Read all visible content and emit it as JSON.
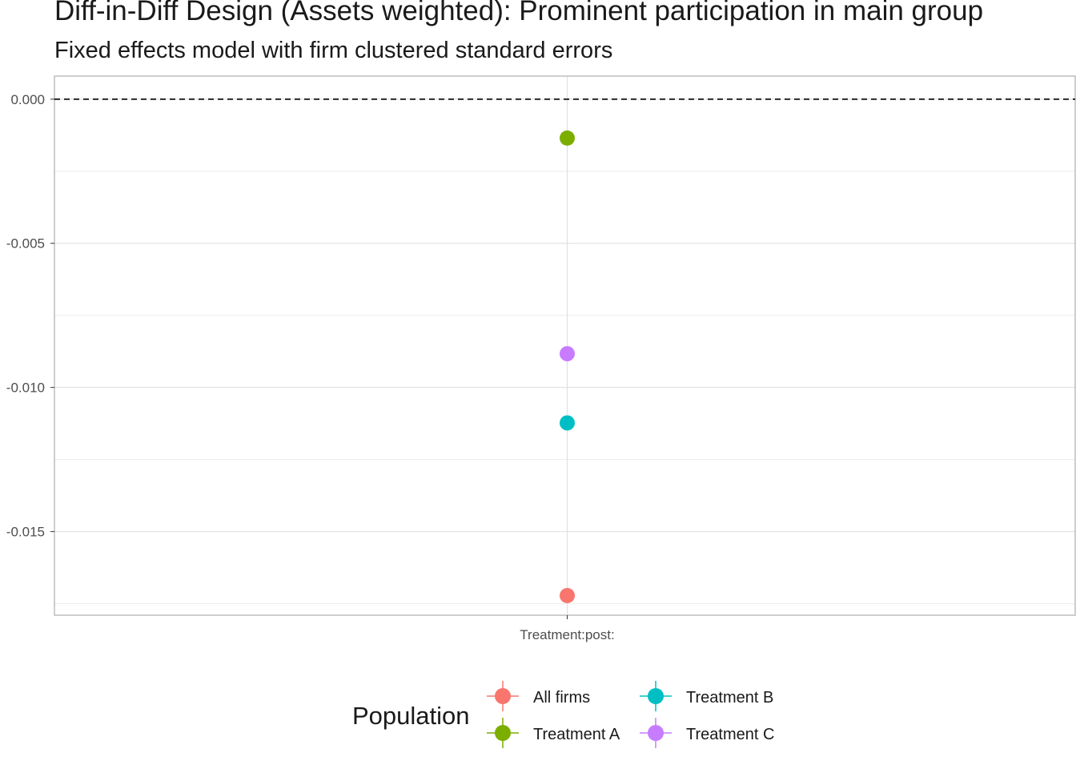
{
  "chart_data": {
    "type": "scatter",
    "title": "Diff-in-Diff Design (Assets weighted): Prominent participation in main group",
    "subtitle": "Fixed effects model with firm clustered standard errors",
    "xlabel": "",
    "ylabel": "",
    "categories": [
      "Treatment:post:"
    ],
    "ylim": [
      -0.0179,
      0.0008
    ],
    "yticks": [
      0.0,
      -0.005,
      -0.01,
      -0.015
    ],
    "ytick_labels": [
      "0.000",
      "-0.005",
      "-0.010",
      "-0.015"
    ],
    "reference_line": 0.0,
    "grid": true,
    "legend": {
      "title": "Population",
      "placement": "bottom"
    },
    "series": [
      {
        "name": "All firms",
        "color": "#F8766D",
        "values": [
          -0.01722
        ]
      },
      {
        "name": "Treatment A",
        "color": "#7CAE00",
        "values": [
          -0.00135
        ]
      },
      {
        "name": "Treatment B",
        "color": "#00BFC4",
        "values": [
          -0.01123
        ]
      },
      {
        "name": "Treatment C",
        "color": "#C77CFF",
        "values": [
          -0.00883
        ]
      }
    ]
  }
}
